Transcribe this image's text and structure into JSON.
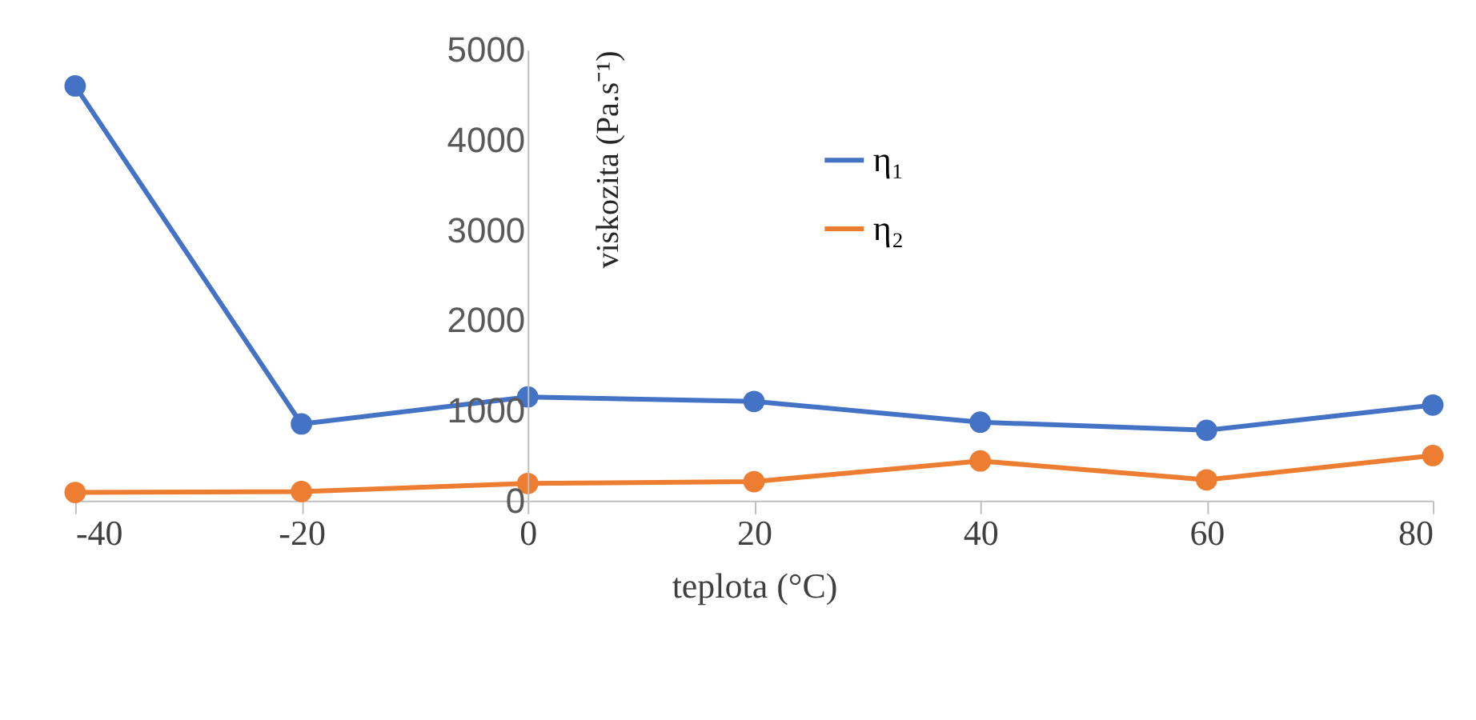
{
  "chart_data": {
    "type": "line",
    "xlabel": "teplota (°C)",
    "ylabel": "viskozita (Pa.s⁻¹)",
    "x": [
      -40,
      -20,
      0,
      20,
      40,
      60,
      80
    ],
    "series": [
      {
        "name": "η₁",
        "color": "#4472c4",
        "values": [
          4600,
          850,
          1150,
          1100,
          870,
          780,
          1060
        ]
      },
      {
        "name": "η₂",
        "color": "#ed7d31",
        "values": [
          90,
          100,
          190,
          210,
          440,
          230,
          500
        ]
      }
    ],
    "xlim": [
      -40,
      80
    ],
    "xticks": [
      -40,
      -20,
      0,
      20,
      40,
      60,
      80
    ],
    "ylim": [
      0,
      5000
    ],
    "yticks": [
      0,
      1000,
      2000,
      3000,
      4000,
      5000
    ],
    "grid": false,
    "legend": "top right",
    "marker": "circle",
    "line_style": "solid"
  }
}
